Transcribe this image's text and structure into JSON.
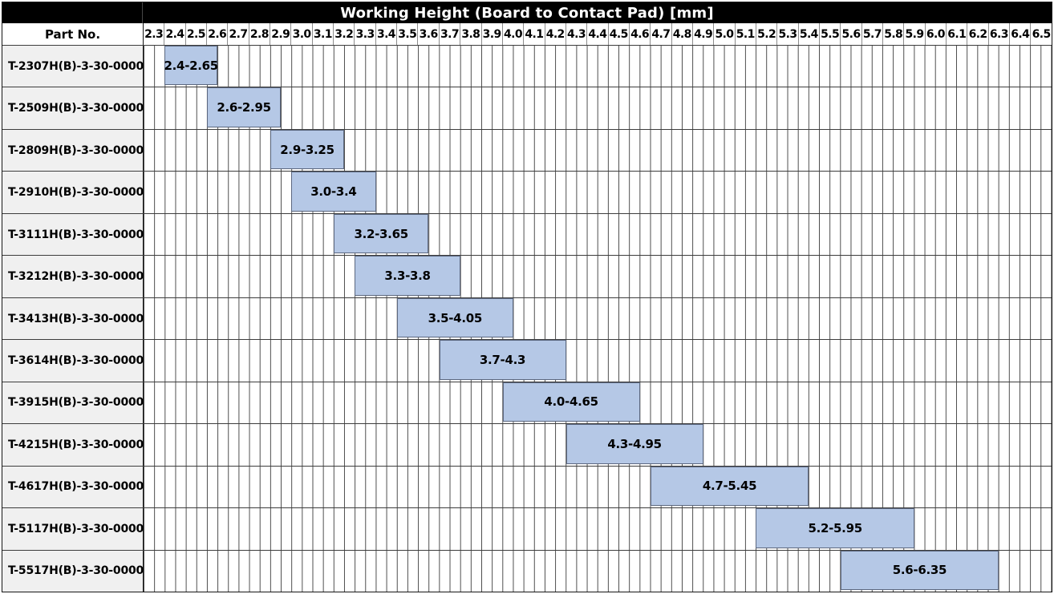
{
  "title": "Working Height (Board to Contact Pad) [mm]",
  "header": {
    "part_no_label": "Part No."
  },
  "colors": {
    "bar_fill": "#b5c8e6",
    "bar_border": "#5c6880",
    "title_bg": "#000000",
    "title_fg": "#ffffff",
    "part_col_bg": "#f0f0f0",
    "grid_line": "#4b4b4b"
  },
  "chart_data": {
    "type": "bar",
    "variant": "horizontal-range-gantt",
    "title": "Working Height (Board to Contact Pad) [mm]",
    "xlabel": "Working Height (Board to Contact Pad) [mm]",
    "ylabel": "Part No.",
    "grid": true,
    "axis": {
      "min": 2.3,
      "max": 6.6,
      "tick_step": 0.1,
      "minor_step": 0.05,
      "tick_labels": [
        "2.3",
        "2.4",
        "2.5",
        "2.6",
        "2.7",
        "2.8",
        "2.9",
        "3.0",
        "3.1",
        "3.2",
        "3.3",
        "3.4",
        "3.5",
        "3.6",
        "3.7",
        "3.8",
        "3.9",
        "4.0",
        "4.1",
        "4.2",
        "4.3",
        "4.4",
        "4.5",
        "4.6",
        "4.7",
        "4.8",
        "4.9",
        "5.0",
        "5.1",
        "5.2",
        "5.3",
        "5.4",
        "5.5",
        "5.6",
        "5.7",
        "5.8",
        "5.9",
        "6.0",
        "6.1",
        "6.2",
        "6.3",
        "6.4",
        "6.5"
      ]
    },
    "categories": [
      "T-2307H(B)-3-30-0000",
      "T-2509H(B)-3-30-0000",
      "T-2809H(B)-3-30-0000",
      "T-2910H(B)-3-30-0000",
      "T-3111H(B)-3-30-0000",
      "T-3212H(B)-3-30-0000",
      "T-3413H(B)-3-30-0000",
      "T-3614H(B)-3-30-0000",
      "T-3915H(B)-3-30-0000",
      "T-4215H(B)-3-30-0000",
      "T-4617H(B)-3-30-0000",
      "T-5117H(B)-3-30-0000",
      "T-5517H(B)-3-30-0000"
    ],
    "rows": [
      {
        "part": "T-2307H(B)-3-30-0000",
        "label": "2.4-2.65",
        "start": 2.4,
        "end": 2.65
      },
      {
        "part": "T-2509H(B)-3-30-0000",
        "label": "2.6-2.95",
        "start": 2.6,
        "end": 2.95
      },
      {
        "part": "T-2809H(B)-3-30-0000",
        "label": "2.9-3.25",
        "start": 2.9,
        "end": 3.25
      },
      {
        "part": "T-2910H(B)-3-30-0000",
        "label": "3.0-3.4",
        "start": 3.0,
        "end": 3.4
      },
      {
        "part": "T-3111H(B)-3-30-0000",
        "label": "3.2-3.65",
        "start": 3.2,
        "end": 3.65
      },
      {
        "part": "T-3212H(B)-3-30-0000",
        "label": "3.3-3.8",
        "start": 3.3,
        "end": 3.8
      },
      {
        "part": "T-3413H(B)-3-30-0000",
        "label": "3.5-4.05",
        "start": 3.5,
        "end": 4.05
      },
      {
        "part": "T-3614H(B)-3-30-0000",
        "label": "3.7-4.3",
        "start": 3.7,
        "end": 4.3
      },
      {
        "part": "T-3915H(B)-3-30-0000",
        "label": "4.0-4.65",
        "start": 4.0,
        "end": 4.65
      },
      {
        "part": "T-4215H(B)-3-30-0000",
        "label": "4.3-4.95",
        "start": 4.3,
        "end": 4.95
      },
      {
        "part": "T-4617H(B)-3-30-0000",
        "label": "4.7-5.45",
        "start": 4.7,
        "end": 5.45
      },
      {
        "part": "T-5117H(B)-3-30-0000",
        "label": "5.2-5.95",
        "start": 5.2,
        "end": 5.95
      },
      {
        "part": "T-5517H(B)-3-30-0000",
        "label": "5.6-6.35",
        "start": 5.6,
        "end": 6.35
      }
    ]
  }
}
